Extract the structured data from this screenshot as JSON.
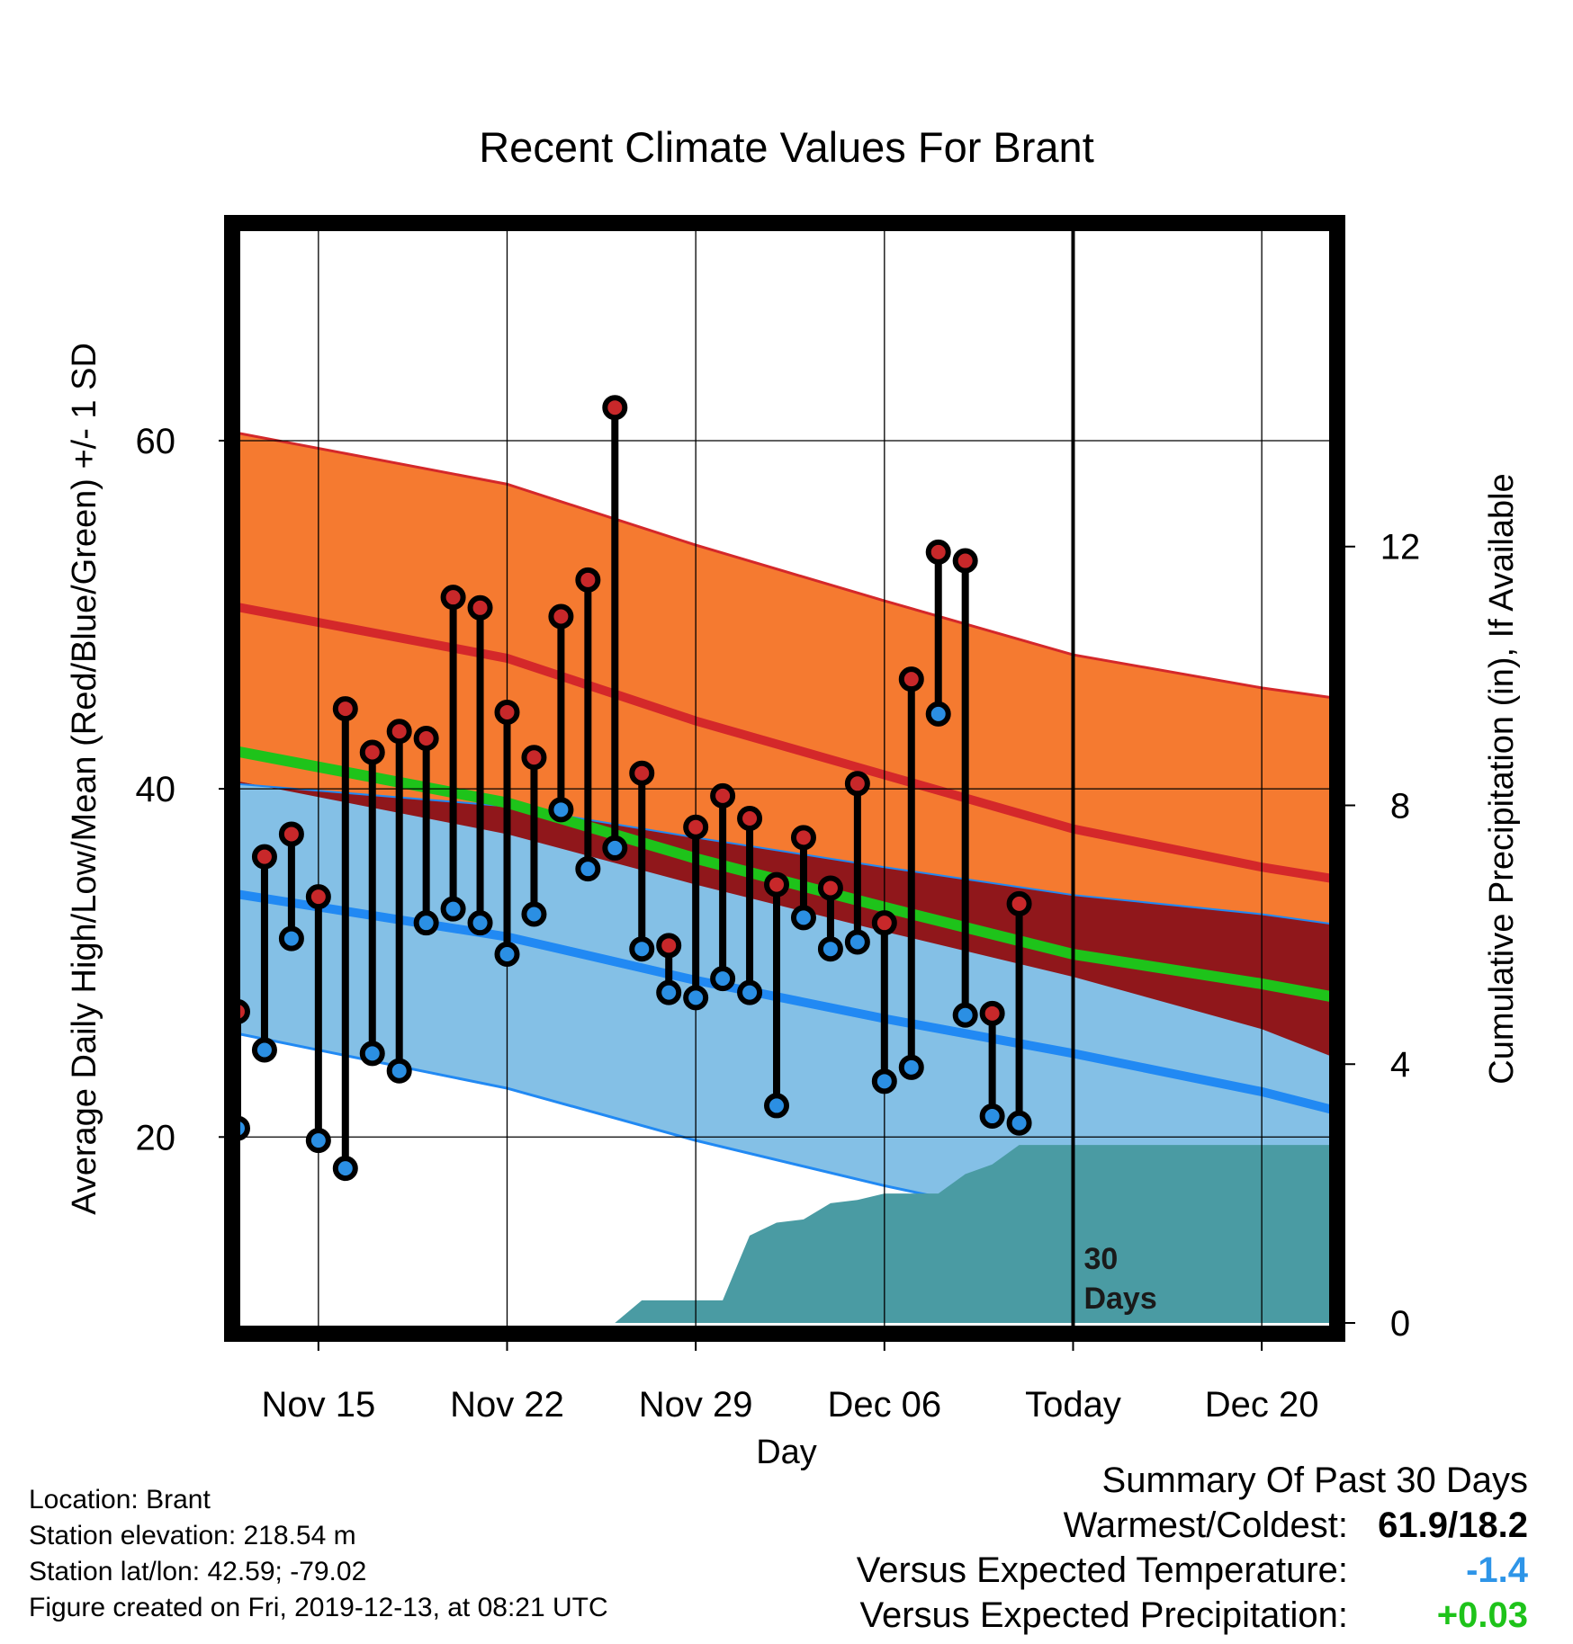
{
  "chart_data": {
    "type": "line",
    "title": "Recent Climate Values For Brant",
    "xlabel": "Day",
    "ylabel": "Average Daily High/Low/Mean (Red/Blue/Green) +/- 1 SD",
    "y2label": "Cumulative Precipitation (in), If Available",
    "x_ticks": [
      {
        "day": 15,
        "label": "Nov 15"
      },
      {
        "day": 22,
        "label": "Nov 22"
      },
      {
        "day": 29,
        "label": "Nov 29"
      },
      {
        "day": 36,
        "label": "Dec 06"
      },
      {
        "day": 43,
        "label": "Today"
      },
      {
        "day": 50,
        "label": "Dec 20"
      }
    ],
    "xlim": [
      11.8,
      52.8
    ],
    "ylim": [
      8.7,
      72.5
    ],
    "y_ticks": [
      20,
      40,
      60
    ],
    "y_minor_ticks": [
      10,
      30,
      50,
      70
    ],
    "y2lim": [
      0,
      17
    ],
    "y2_ticks": [
      0,
      4,
      8,
      12
    ],
    "today_marker": {
      "day": 43,
      "label_line1": "30",
      "label_line2": "Days"
    },
    "normals": {
      "x": [
        11.8,
        22,
        29,
        36,
        43,
        50,
        52.8
      ],
      "high_upper": [
        60.5,
        57.5,
        54.0,
        50.8,
        47.7,
        45.8,
        45.2
      ],
      "high_mean": [
        50.5,
        47.5,
        43.9,
        40.8,
        37.7,
        35.5,
        34.8
      ],
      "high_lower": [
        40.5,
        37.4,
        34.5,
        31.8,
        29.2,
        26.2,
        24.5
      ],
      "mean": [
        42.2,
        39.2,
        36.0,
        33.2,
        30.5,
        28.8,
        28.0
      ],
      "low_upper": [
        40.3,
        39.0,
        37.2,
        35.5,
        33.9,
        32.8,
        32.2
      ],
      "low_mean": [
        34.0,
        31.5,
        29.0,
        26.8,
        24.8,
        22.6,
        21.5
      ],
      "low_lower": [
        26.0,
        22.8,
        19.8,
        17.2,
        14.9,
        12.9,
        12.0
      ]
    },
    "series": [
      {
        "name": "High",
        "x": [
          12,
          13,
          14,
          15,
          16,
          17,
          18,
          19,
          20,
          21,
          22,
          23,
          24,
          25,
          26,
          27,
          28,
          29,
          30,
          31,
          32,
          33,
          34,
          35,
          36,
          37,
          38,
          39,
          40,
          41,
          42
        ],
        "values": [
          27.2,
          36.1,
          37.4,
          33.8,
          44.6,
          42.1,
          43.3,
          42.9,
          51.0,
          50.4,
          44.4,
          41.8,
          49.9,
          52.0,
          61.9,
          40.9,
          31.0,
          37.8,
          39.6,
          38.3,
          34.5,
          37.2,
          34.3,
          40.3,
          32.3,
          46.3,
          53.6,
          53.1,
          27.1,
          33.4,
          null
        ]
      },
      {
        "name": "Low",
        "x": [
          12,
          13,
          14,
          15,
          16,
          17,
          18,
          19,
          20,
          21,
          22,
          23,
          24,
          25,
          26,
          27,
          28,
          29,
          30,
          31,
          32,
          33,
          34,
          35,
          36,
          37,
          38,
          39,
          40,
          41,
          42
        ],
        "values": [
          20.5,
          25.0,
          31.4,
          19.8,
          18.2,
          24.8,
          23.8,
          32.3,
          33.1,
          32.3,
          30.5,
          32.8,
          38.8,
          35.4,
          36.6,
          30.8,
          28.3,
          28.0,
          29.1,
          28.3,
          21.8,
          32.6,
          30.8,
          31.2,
          23.2,
          24.0,
          44.3,
          27.0,
          21.2,
          20.8,
          null
        ]
      },
      {
        "name": "Cumulative Precipitation",
        "x": [
          26,
          27,
          28,
          29,
          30,
          31,
          32,
          33,
          34,
          35,
          36,
          37,
          38,
          39,
          40,
          41,
          42,
          43,
          52.8
        ],
        "values": [
          0,
          0.35,
          0.35,
          0.35,
          0.35,
          1.35,
          1.55,
          1.6,
          1.85,
          1.9,
          2.0,
          2.0,
          2.0,
          2.3,
          2.45,
          2.75,
          2.75,
          2.75,
          2.75
        ]
      }
    ],
    "colors": {
      "high_band": "#f57a30",
      "high_line": "#d4282a",
      "overlap_band": "#90171b",
      "low_band": "#84c0e6",
      "low_line": "#2189f3",
      "mean_line": "#1ec31a",
      "precip": "#4a9ba3",
      "high_dot": "#c8282a",
      "low_dot": "#2b8fe3"
    }
  },
  "info": {
    "location": "Location: Brant",
    "elevation": "Station elevation: 218.54 m",
    "latlon": "Station lat/lon: 42.59; -79.02",
    "created": "Figure created on Fri, 2019-12-13, at 08:21 UTC"
  },
  "summary": {
    "heading": "Summary Of Past 30 Days",
    "warm_cold_label": "Warmest/Coldest:",
    "warm_cold_value": "61.9/18.2",
    "temp_label": "Versus Expected Temperature:",
    "temp_value": "-1.4",
    "temp_color": "#2e95e8",
    "precip_label": "Versus Expected Precipitation:",
    "precip_value": "+0.03",
    "precip_color": "#1ec31a"
  }
}
